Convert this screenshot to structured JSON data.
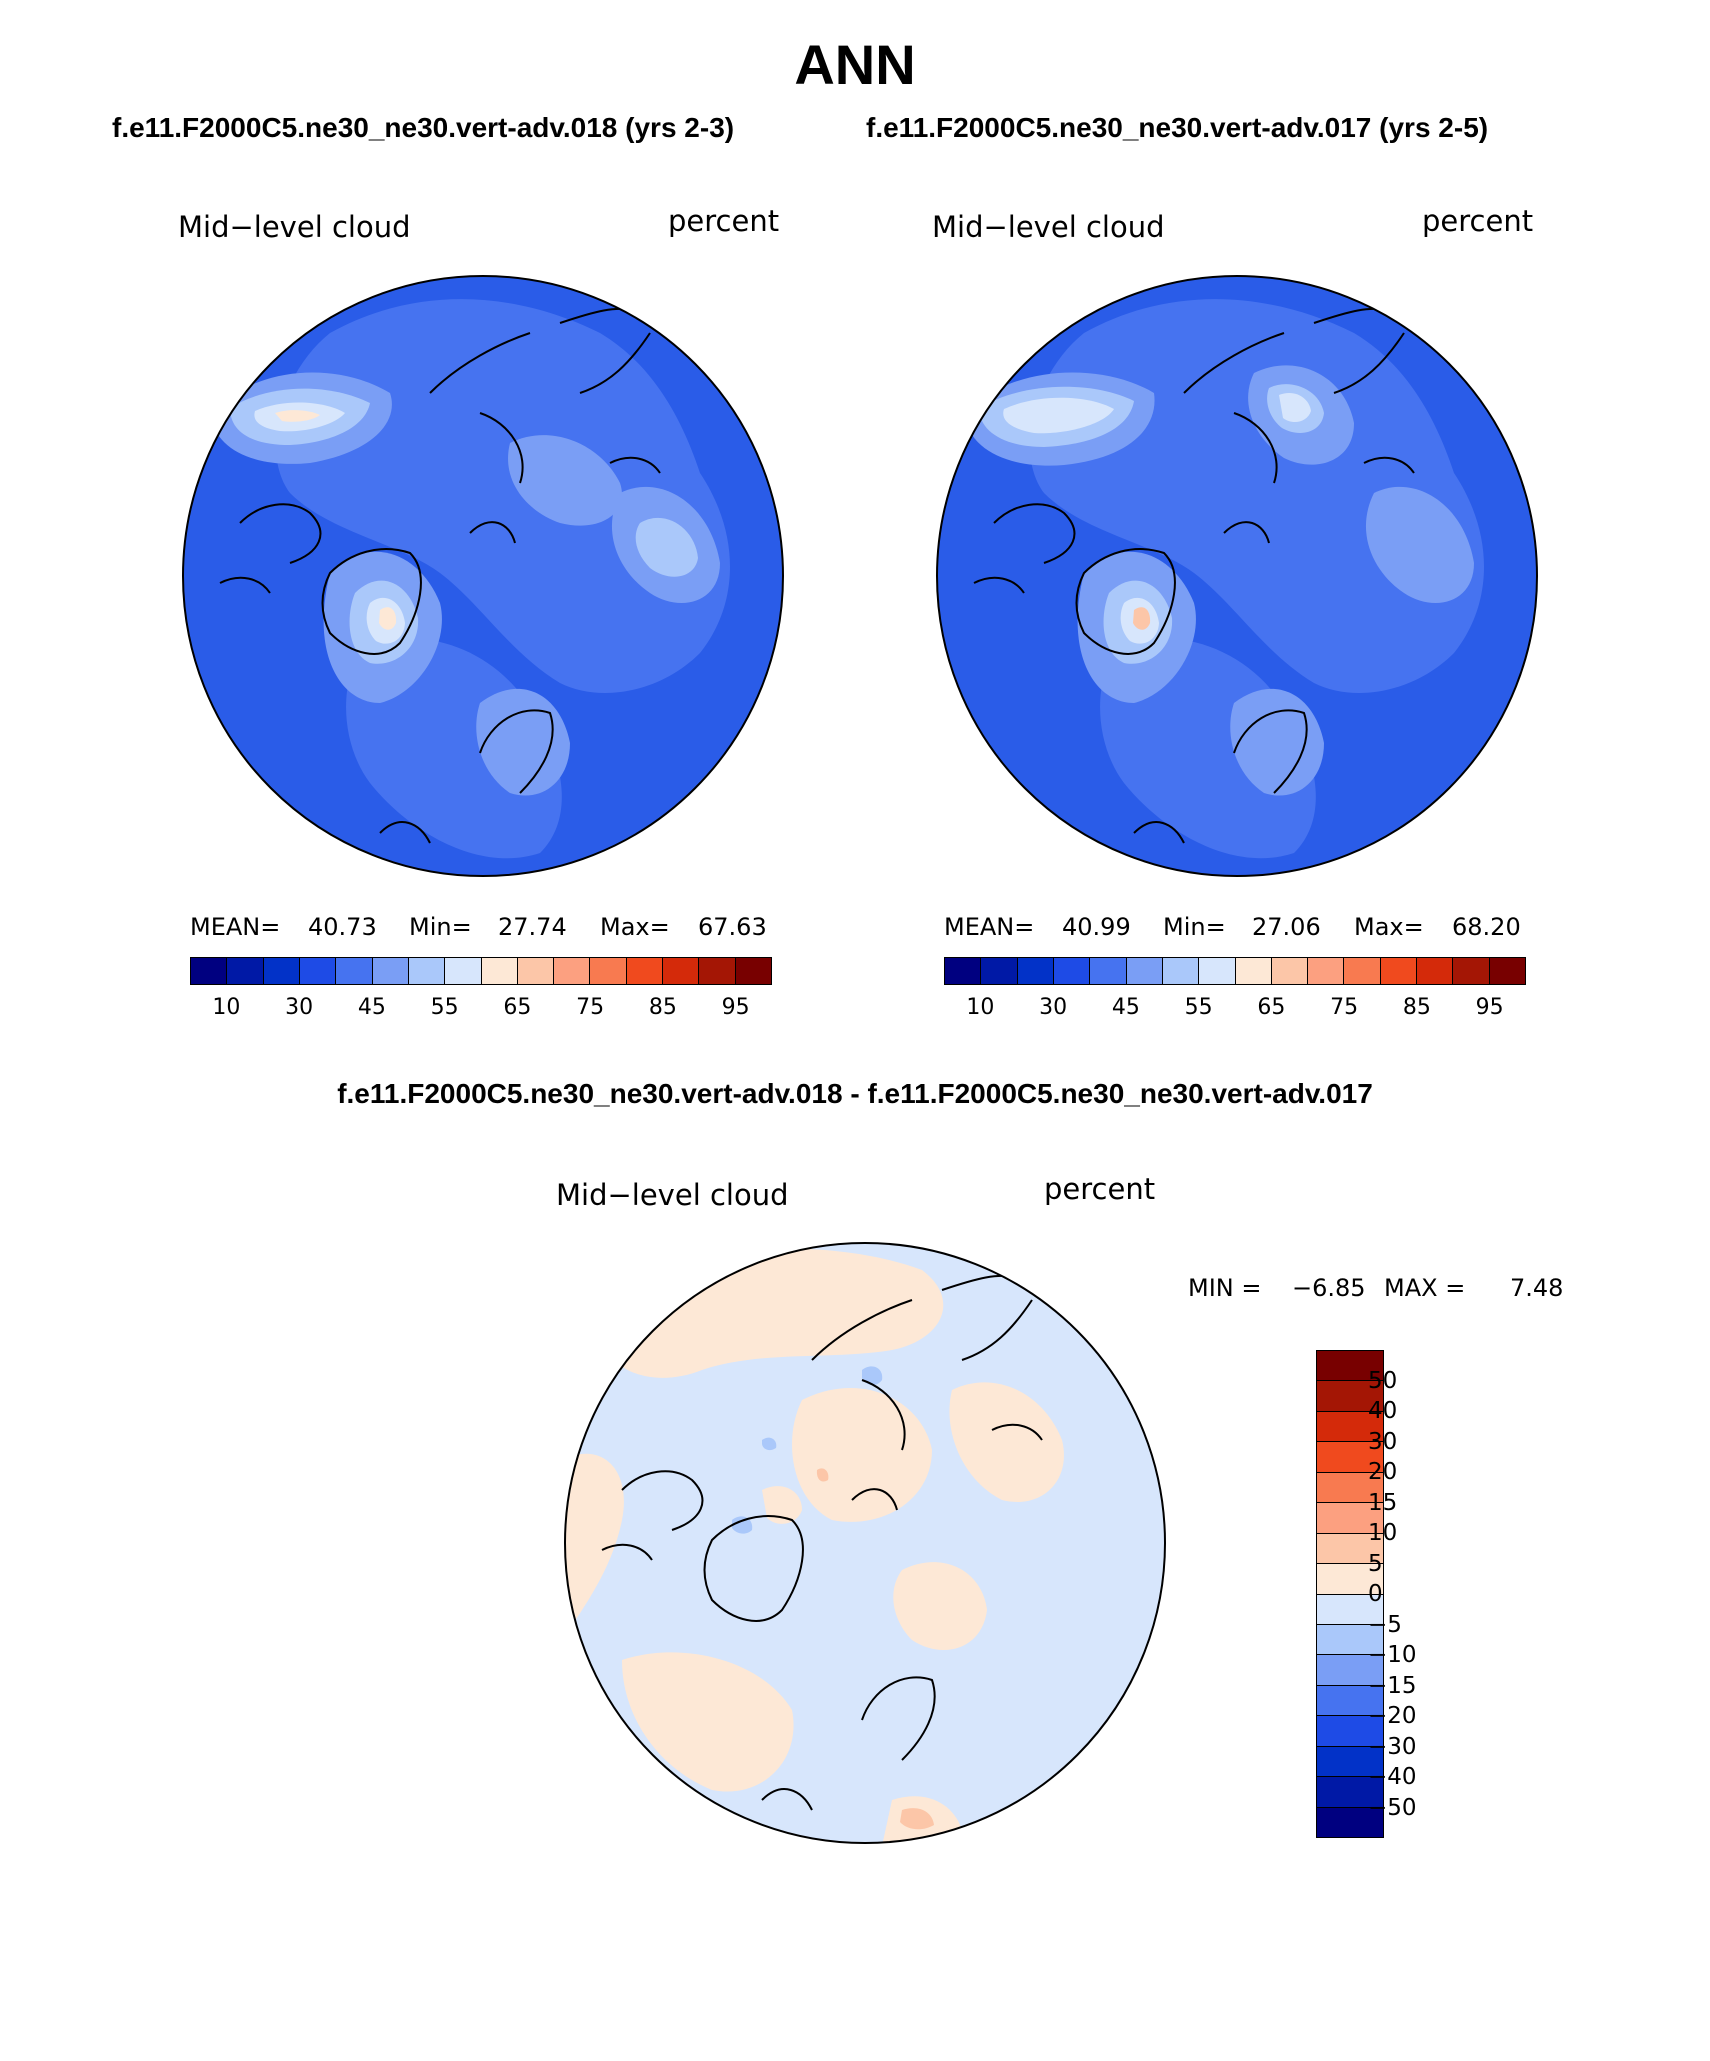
{
  "title": "ANN",
  "panels": [
    {
      "case": "f.e11.F2000C5.ne30_ne30.vert-adv.018 (yrs 2-3)",
      "variable": "Mid−level cloud",
      "units": "percent",
      "mean_label": "MEAN=",
      "mean": "40.73",
      "min_label": "Min=",
      "min": "27.74",
      "max_label": "Max=",
      "max": "67.63"
    },
    {
      "case": "f.e11.F2000C5.ne30_ne30.vert-adv.017 (yrs 2-5)",
      "variable": "Mid−level cloud",
      "units": "percent",
      "mean_label": "MEAN=",
      "mean": "40.99",
      "min_label": "Min=",
      "min": "27.06",
      "max_label": "Max=",
      "max": "68.20"
    }
  ],
  "difference": {
    "title": "f.e11.F2000C5.ne30_ne30.vert-adv.018 - f.e11.F2000C5.ne30_ne30.vert-adv.017",
    "variable": "Mid−level cloud",
    "units": "percent",
    "min_label": "MIN =",
    "min": "−6.85",
    "max_label": "MAX =",
    "max": "7.48"
  },
  "colorbar_abs": {
    "ticks": [
      "10",
      "30",
      "45",
      "55",
      "65",
      "75",
      "85",
      "95"
    ],
    "colors": [
      "#000080",
      "#0019a6",
      "#0232c8",
      "#1e4be6",
      "#4673f0",
      "#7a9ef5",
      "#aac8fa",
      "#d7e6fc",
      "#fde8d6",
      "#fcc6a8",
      "#fca080",
      "#f87a50",
      "#f04a1e",
      "#d42a0a",
      "#a41605",
      "#780000"
    ]
  },
  "colorbar_diff": {
    "ticks": [
      "50",
      "40",
      "30",
      "20",
      "15",
      "10",
      "5",
      "0",
      "−5",
      "−10",
      "−15",
      "−20",
      "−30",
      "−40",
      "−50"
    ],
    "colors": [
      "#780000",
      "#a41605",
      "#d42a0a",
      "#f04a1e",
      "#f87a50",
      "#fca080",
      "#fcc6a8",
      "#fde8d6",
      "#d7e6fc",
      "#aac8fa",
      "#7a9ef5",
      "#4673f0",
      "#1e4be6",
      "#0232c8",
      "#0019a6",
      "#000080"
    ]
  },
  "map_colors": {
    "abs_background": "#2a5ce8",
    "abs_mid": "#4673f0",
    "abs_light": "#7a9ef5",
    "abs_lighter": "#aac8fa",
    "abs_palest": "#d7e6fc",
    "abs_warm": "#fde8d6",
    "diff_background": "#d7e6fc",
    "diff_warm": "#fde8d6",
    "diff_warmer": "#fcc6a8",
    "diff_cool": "#aac8fa"
  }
}
